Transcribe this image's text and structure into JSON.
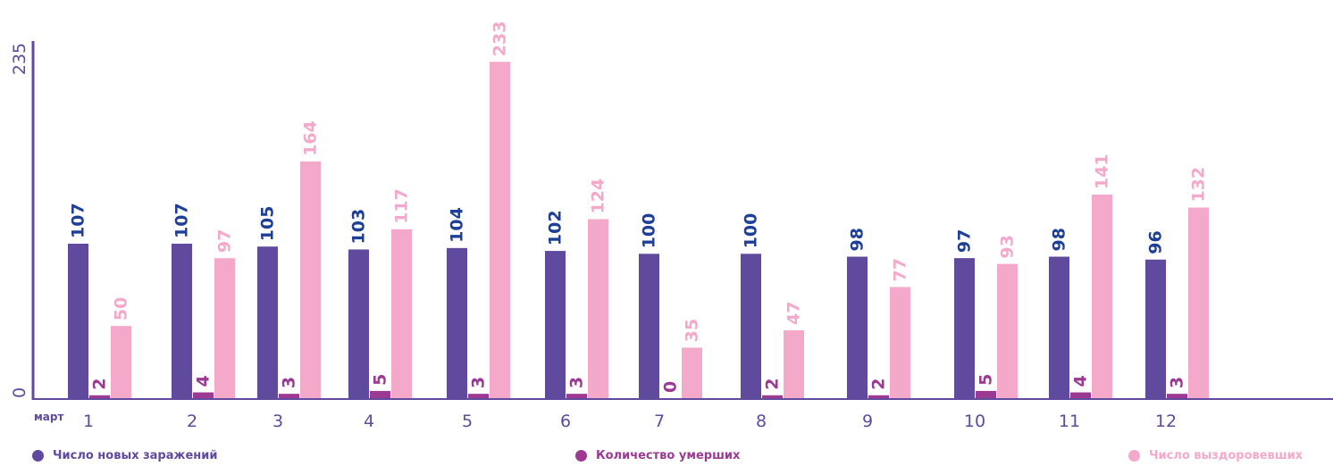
{
  "chart_data": {
    "type": "bar",
    "x_label_prefix": "март",
    "categories": [
      "1",
      "2",
      "3",
      "4",
      "5",
      "6",
      "7",
      "8",
      "9",
      "10",
      "11",
      "12"
    ],
    "series": [
      {
        "name": "Число новых заражений",
        "color": "#5f4a9e",
        "values": [
          107,
          107,
          105,
          103,
          104,
          102,
          100,
          100,
          98,
          97,
          98,
          96
        ]
      },
      {
        "name": "Количество умерших",
        "color": "#9c3a93",
        "values": [
          2,
          4,
          3,
          5,
          3,
          3,
          0,
          2,
          2,
          5,
          4,
          3
        ]
      },
      {
        "name": "Число выздоровевших",
        "color": "#f4a9cb",
        "values": [
          50,
          97,
          164,
          117,
          233,
          124,
          35,
          47,
          77,
          93,
          141,
          132
        ]
      }
    ],
    "y_ticks": [
      "0",
      "235"
    ],
    "ylim": [
      0,
      235
    ],
    "legend_position": "bottom",
    "grid": false,
    "axis_color": "#5f4a9e"
  }
}
